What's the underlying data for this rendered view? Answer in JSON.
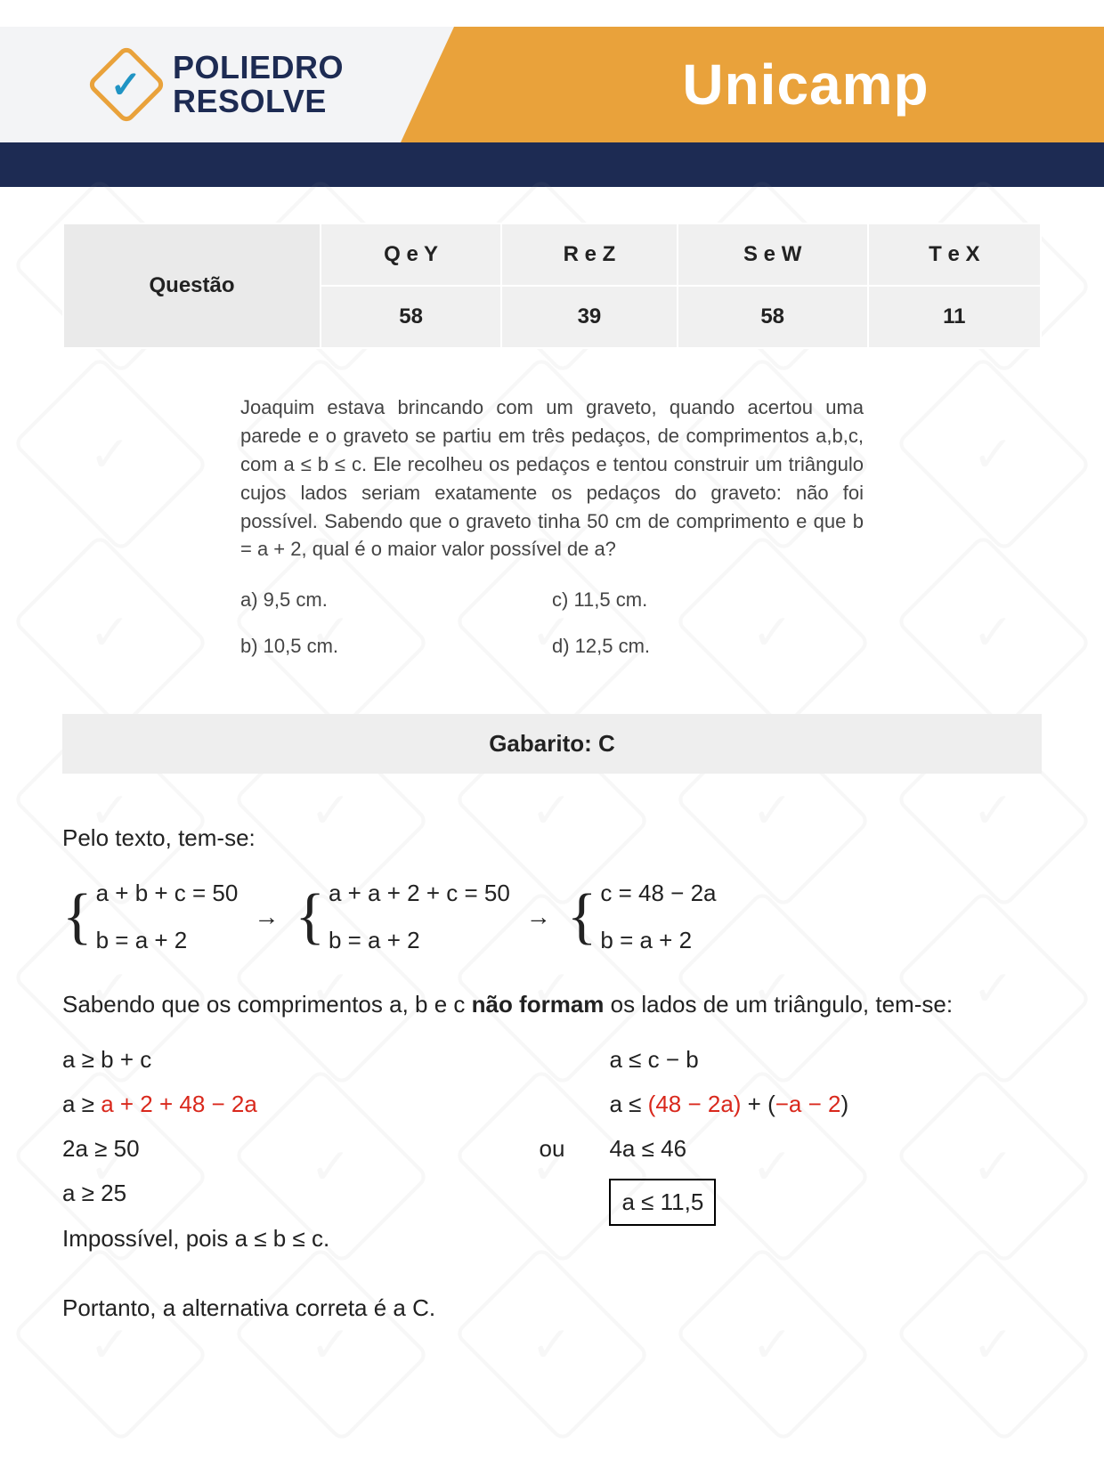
{
  "header": {
    "brand_line1": "POLIEDRO",
    "brand_line2": "RESOLVE",
    "brand_color": "#1d2b53",
    "accent_color": "#e9a23b",
    "check_color": "#2094c4",
    "exam_name": "Unicamp"
  },
  "table": {
    "row_label": "Questão",
    "columns": [
      "Q e Y",
      "R e Z",
      "S e W",
      "T e X"
    ],
    "values": [
      "58",
      "39",
      "58",
      "11"
    ],
    "bg_color": "#f0f0f0",
    "border_color": "#ffffff"
  },
  "question": {
    "prompt": "Joaquim estava brincando com um graveto, quando acertou uma parede e o graveto se partiu em três pedaços, de comprimentos a,b,c, com a ≤ b ≤ c. Ele recolheu os pedaços e tentou construir um triângulo cujos lados seriam exatamente os pedaços do graveto: não foi possível. Sabendo que o graveto tinha 50 cm de comprimento e que b = a + 2, qual é o maior valor possível de a?",
    "options": {
      "a": "a)  9,5 cm.",
      "b": "b)  10,5 cm.",
      "c": "c)  11,5 cm.",
      "d": "d)  12,5 cm."
    }
  },
  "answer_bar": "Gabarito: C",
  "solution": {
    "intro": "Pelo texto, tem-se:",
    "sys1": {
      "l1": "a + b + c = 50",
      "l2": "b = a + 2"
    },
    "sys2": {
      "l1": "a + a + 2 + c = 50",
      "l2": "b = a + 2"
    },
    "sys3": {
      "l1": "c = 48 − 2a",
      "l2": "b = a + 2"
    },
    "mid_text_pre": "Sabendo que os comprimentos a, b e c ",
    "mid_text_bold": "não formam",
    "mid_text_post": " os lados de um triângulo, tem-se:",
    "left": {
      "l1": "a ≥ b + c",
      "l2_pre": "a ≥ ",
      "l2_red": "a + 2 + 48 − 2a",
      "l3": "2a ≥ 50",
      "l4": "a ≥ 25",
      "l5": "Impossível,  pois a ≤ b ≤ c."
    },
    "ou": "ou",
    "right": {
      "l1": "a ≤ c − b",
      "l2_pre": "a ≤ ",
      "l2_red1": "(48 − 2a)",
      "l2_mid": " + (",
      "l2_red2": "−a − 2",
      "l2_end": ")",
      "l3": "4a ≤ 46",
      "box": "a ≤ 11,5"
    },
    "final": "Portanto, a alternativa correta é a C.",
    "red_color": "#d9281c"
  }
}
